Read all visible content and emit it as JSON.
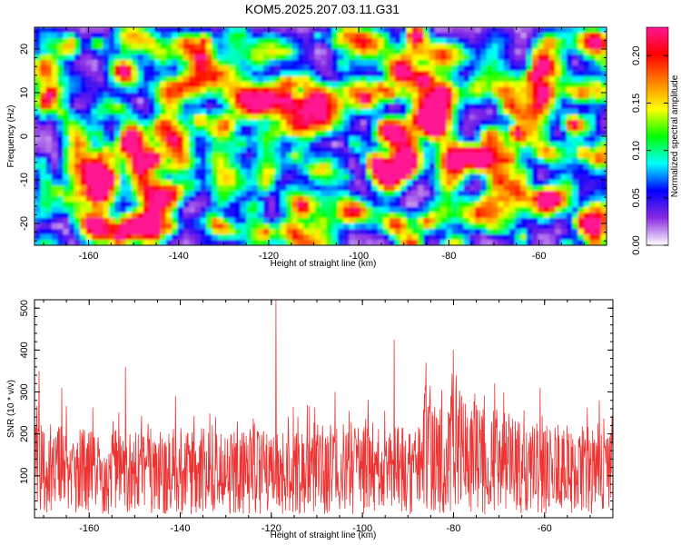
{
  "chart_data": [
    {
      "type": "heatmap",
      "title": "KOM5.2025.207.03.11.G31",
      "xlabel": "Height of straight line (km)",
      "ylabel": "Frequency (Hz)",
      "xlim": [
        -172,
        -45
      ],
      "ylim": [
        -25,
        25
      ],
      "xticks": [
        "-160",
        "-140",
        "-120",
        "-100",
        "-80",
        "-60"
      ],
      "yticks": [
        "-20",
        "-10",
        "0",
        "10",
        "20"
      ],
      "colorbar": {
        "label": "Normalized spectral amplitude",
        "range": [
          0,
          0.23
        ],
        "ticks": [
          "0.00",
          "0.05",
          "0.10",
          "0.15",
          "0.20"
        ],
        "colormap": [
          "#ffffff",
          "#8a2be2",
          "#0000ff",
          "#00ffff",
          "#00ff00",
          "#ffff00",
          "#ff8000",
          "#ff0000",
          "#ff1493"
        ]
      },
      "hotspots": [
        {
          "x": -88,
          "y": 24,
          "value": 0.22
        },
        {
          "x": -86,
          "y": 14,
          "value": 0.18
        },
        {
          "x": -84,
          "y": 2.5,
          "value": 0.16
        },
        {
          "x": -132,
          "y": -20,
          "value": 0.14
        },
        {
          "x": -97,
          "y": -5,
          "value": 0.13
        },
        {
          "x": -153,
          "y": 15.5,
          "value": 0.12
        },
        {
          "x": -116,
          "y": 13,
          "value": 0.11
        },
        {
          "x": -146,
          "y": -5,
          "value": 0.12
        },
        {
          "x": -136,
          "y": 4.5,
          "value": 0.11
        },
        {
          "x": -60,
          "y": 16.5,
          "value": 0.1
        },
        {
          "x": -90,
          "y": -24.5,
          "value": 0.12
        },
        {
          "x": -129,
          "y": -21,
          "value": 0.1
        }
      ]
    },
    {
      "type": "line",
      "xlabel": "Height of straight line (km)",
      "ylabel": "SNR (10 * v/v)",
      "xlim": [
        -172,
        -45
      ],
      "ylim": [
        0,
        520
      ],
      "xticks": [
        "-160",
        "-140",
        "-120",
        "-100",
        "-80",
        "-60"
      ],
      "yticks": [
        "100",
        "200",
        "300",
        "400",
        "500"
      ],
      "color": "#ee3333",
      "profile": [
        {
          "x": -172,
          "y": 115
        },
        {
          "x": -160,
          "y": 110
        },
        {
          "x": -140,
          "y": 110
        },
        {
          "x": -120,
          "y": 110
        },
        {
          "x": -100,
          "y": 118
        },
        {
          "x": -95,
          "y": 125
        },
        {
          "x": -88,
          "y": 105
        },
        {
          "x": -86,
          "y": 170
        },
        {
          "x": -80,
          "y": 160
        },
        {
          "x": -72,
          "y": 135
        },
        {
          "x": -60,
          "y": 115
        },
        {
          "x": -45,
          "y": 110
        }
      ],
      "peaks": [
        {
          "x": -171,
          "y": 350
        },
        {
          "x": -166,
          "y": 310
        },
        {
          "x": -152,
          "y": 360
        },
        {
          "x": -141,
          "y": 290
        },
        {
          "x": -119,
          "y": 520
        },
        {
          "x": -106,
          "y": 300
        },
        {
          "x": -93,
          "y": 425
        },
        {
          "x": -86,
          "y": 370
        },
        {
          "x": -80,
          "y": 400
        },
        {
          "x": -71,
          "y": 320
        },
        {
          "x": -61,
          "y": 310
        },
        {
          "x": -48,
          "y": 280
        }
      ]
    }
  ]
}
